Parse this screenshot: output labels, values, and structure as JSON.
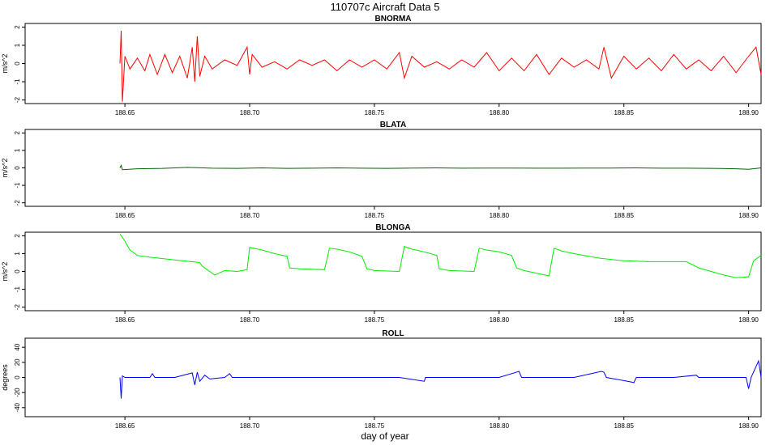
{
  "figure": {
    "title": "110707c   Aircraft Data 5",
    "xlabel": "day of year"
  },
  "chart_data": [
    {
      "type": "line",
      "title": "BNORMA",
      "ylabel": "m/s^2",
      "xlim": [
        188.61,
        188.905
      ],
      "ylim": [
        -2.2,
        2.2
      ],
      "xticks": [
        "188.65",
        "188.70",
        "188.75",
        "188.80",
        "188.85",
        "188.90"
      ],
      "yticks": [
        "-2",
        "-1",
        "0",
        "1",
        "2"
      ],
      "color": "#ff0000",
      "series": [
        {
          "x": [
            188.648,
            188.6485,
            188.649,
            188.65,
            188.652,
            188.655,
            188.658,
            188.66,
            188.663,
            188.666,
            188.669,
            188.672,
            188.675,
            188.677,
            188.678,
            188.679,
            188.68,
            188.682,
            188.685,
            188.69,
            188.695,
            188.699,
            188.7,
            188.701,
            188.705,
            188.71,
            188.715,
            188.72,
            188.725,
            188.73,
            188.735,
            188.74,
            188.745,
            188.75,
            188.755,
            188.76,
            188.762,
            188.765,
            188.77,
            188.775,
            188.78,
            188.785,
            188.79,
            188.795,
            188.8,
            188.805,
            188.81,
            188.815,
            188.82,
            188.825,
            188.83,
            188.835,
            188.84,
            188.842,
            188.845,
            188.85,
            188.855,
            188.86,
            188.865,
            188.87,
            188.875,
            188.88,
            188.885,
            188.89,
            188.895,
            188.9,
            188.903,
            188.905
          ],
          "y": [
            0,
            1.8,
            -2.1,
            0.4,
            -0.3,
            0.3,
            -0.4,
            0.5,
            -0.6,
            0.5,
            -0.5,
            0.4,
            -0.8,
            0.9,
            -1.0,
            1.5,
            -0.7,
            0.4,
            -0.3,
            0.2,
            -0.1,
            0.9,
            -0.6,
            0.5,
            -0.2,
            0.1,
            -0.3,
            0.2,
            -0.1,
            0.2,
            -0.4,
            0.2,
            -0.2,
            0.2,
            -0.3,
            0.6,
            -0.8,
            0.4,
            -0.2,
            0.1,
            -0.3,
            0.2,
            -0.2,
            0.6,
            -0.4,
            0.3,
            -0.4,
            0.5,
            -0.6,
            0.3,
            -0.2,
            0.2,
            -0.3,
            0.9,
            -0.8,
            0.4,
            -0.3,
            0.3,
            -0.4,
            0.5,
            -0.3,
            0.2,
            -0.4,
            0.4,
            -0.5,
            0.4,
            0.9,
            -0.6
          ]
        }
      ]
    },
    {
      "type": "line",
      "title": "BLATA",
      "ylabel": "m/s^2",
      "xlim": [
        188.61,
        188.905
      ],
      "ylim": [
        -2.2,
        2.2
      ],
      "xticks": [
        "188.65",
        "188.70",
        "188.75",
        "188.80",
        "188.85",
        "188.90"
      ],
      "yticks": [
        "-2",
        "-1",
        "0",
        "1",
        "2"
      ],
      "color": "#006400",
      "series": [
        {
          "x": [
            188.648,
            188.6485,
            188.649,
            188.655,
            188.665,
            188.675,
            188.685,
            188.695,
            188.705,
            188.715,
            188.725,
            188.735,
            188.745,
            188.755,
            188.765,
            188.775,
            188.785,
            188.795,
            188.805,
            188.815,
            188.825,
            188.835,
            188.845,
            188.855,
            188.865,
            188.875,
            188.885,
            188.895,
            188.9,
            188.905
          ],
          "y": [
            0,
            0.15,
            -0.1,
            -0.05,
            -0.03,
            0.03,
            -0.02,
            -0.03,
            0.0,
            -0.03,
            -0.02,
            0.0,
            -0.02,
            -0.03,
            -0.01,
            0.0,
            -0.02,
            -0.01,
            -0.01,
            -0.02,
            -0.02,
            -0.01,
            -0.01,
            0.0,
            -0.02,
            -0.02,
            -0.03,
            -0.05,
            -0.08,
            0.0
          ]
        }
      ]
    },
    {
      "type": "line",
      "title": "BLONGA",
      "ylabel": "m/s^2",
      "xlim": [
        188.61,
        188.905
      ],
      "ylim": [
        -2.2,
        2.2
      ],
      "xticks": [
        "188.65",
        "188.70",
        "188.75",
        "188.80",
        "188.85",
        "188.90"
      ],
      "yticks": [
        "-2",
        "-1",
        "0",
        "1",
        "2"
      ],
      "color": "#00ee00",
      "series": [
        {
          "x": [
            188.648,
            188.65,
            188.652,
            188.655,
            188.66,
            188.67,
            188.68,
            188.681,
            188.686,
            188.69,
            188.695,
            188.699,
            188.7,
            188.705,
            188.71,
            188.715,
            188.716,
            188.72,
            188.73,
            188.732,
            188.735,
            188.74,
            188.745,
            188.747,
            188.75,
            188.76,
            188.762,
            188.765,
            188.77,
            188.775,
            188.776,
            188.78,
            188.79,
            188.792,
            188.795,
            188.8,
            188.805,
            188.807,
            188.81,
            188.82,
            188.822,
            188.825,
            188.83,
            188.84,
            188.85,
            188.86,
            188.87,
            188.875,
            188.88,
            188.885,
            188.89,
            188.895,
            188.9,
            188.902,
            188.905
          ],
          "y": [
            2.1,
            1.7,
            1.2,
            0.9,
            0.8,
            0.65,
            0.5,
            0.3,
            -0.2,
            0.05,
            0.0,
            0.1,
            1.35,
            1.2,
            1.0,
            0.85,
            0.2,
            0.15,
            0.1,
            1.3,
            1.25,
            1.1,
            0.85,
            0.15,
            0.05,
            0.0,
            1.4,
            1.25,
            1.1,
            0.9,
            0.15,
            0.05,
            0.0,
            1.3,
            1.2,
            1.1,
            0.9,
            0.2,
            0.05,
            -0.25,
            1.3,
            1.15,
            1.0,
            0.75,
            0.6,
            0.55,
            0.55,
            0.55,
            0.2,
            0.0,
            -0.2,
            -0.35,
            -0.3,
            0.6,
            0.9
          ]
        }
      ]
    },
    {
      "type": "line",
      "title": "ROLL",
      "ylabel": "degrees",
      "xlim": [
        188.61,
        188.905
      ],
      "ylim": [
        -52,
        52
      ],
      "xticks": [
        "188.65",
        "188.70",
        "188.75",
        "188.80",
        "188.85",
        "188.90"
      ],
      "yticks": [
        "-40",
        "-20",
        "0",
        "20",
        "40"
      ],
      "color": "#0000ff",
      "series": [
        {
          "x": [
            188.648,
            188.6485,
            188.649,
            188.65,
            188.66,
            188.661,
            188.662,
            188.67,
            188.677,
            188.678,
            188.679,
            188.68,
            188.682,
            188.684,
            188.69,
            188.692,
            188.693,
            188.7,
            188.72,
            188.74,
            188.76,
            188.77,
            188.7705,
            188.78,
            188.8,
            188.808,
            188.809,
            188.81,
            188.83,
            188.841,
            188.842,
            188.843,
            188.853,
            188.854,
            188.855,
            188.87,
            188.879,
            188.88,
            188.89,
            188.899,
            188.9,
            188.901,
            188.904,
            188.905
          ],
          "y": [
            0,
            -28,
            2,
            0,
            0,
            5,
            0,
            0,
            6,
            -10,
            7,
            -5,
            3,
            -2,
            0,
            5,
            0,
            0,
            0,
            0,
            0,
            -5,
            0,
            0,
            0,
            8,
            0,
            0,
            0,
            8,
            7,
            0,
            -6,
            -7,
            0,
            0,
            3,
            0,
            0,
            0,
            -15,
            0,
            22,
            0
          ]
        }
      ]
    }
  ]
}
